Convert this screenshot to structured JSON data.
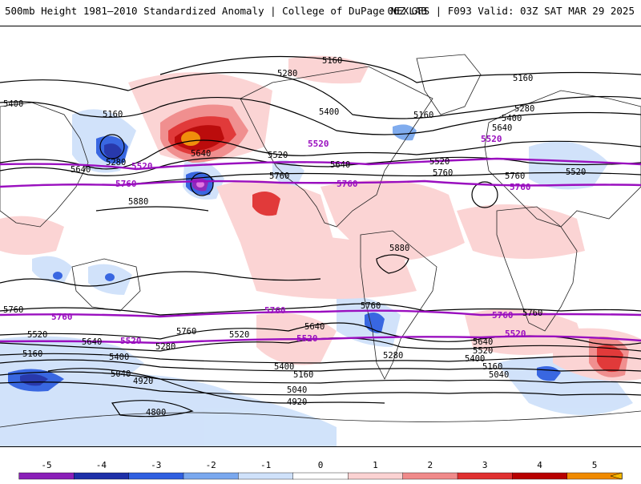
{
  "header": {
    "title": "500mb Height 1981–2010 Standardized Anomaly | College of DuPage NEXLAB",
    "run_info": "06Z GFS | F093 Valid: 03Z SAT MAR 29 2025"
  },
  "colors": {
    "contour": "#000000",
    "highlight_contour": "#9a0fbf",
    "coast": "#222222"
  },
  "contour_labels": [
    {
      "text": "5160",
      "group": "black"
    },
    {
      "text": "5280",
      "group": "black"
    },
    {
      "text": "5400",
      "group": "black"
    },
    {
      "text": "5520",
      "group": "black"
    },
    {
      "text": "5640",
      "group": "black"
    },
    {
      "text": "5760",
      "group": "black"
    },
    {
      "text": "5880",
      "group": "black"
    },
    {
      "text": "5040",
      "group": "black"
    },
    {
      "text": "4920",
      "group": "black"
    },
    {
      "text": "4800",
      "group": "black"
    },
    {
      "text": "5520",
      "group": "purple"
    },
    {
      "text": "5760",
      "group": "purple"
    }
  ],
  "colorbar": {
    "ticks": [
      "-5",
      "-4",
      "-3",
      "-2",
      "-1",
      "0",
      "1",
      "2",
      "3",
      "4",
      "5"
    ],
    "segments": [
      {
        "color": "#e070e0"
      },
      {
        "color": "#8a1fb8"
      },
      {
        "color": "#1d2fa8"
      },
      {
        "color": "#2f5fe0"
      },
      {
        "color": "#7aa8ee"
      },
      {
        "color": "#cfe1fa"
      },
      {
        "color": "#ffffff"
      },
      {
        "color": "#fbd2d2"
      },
      {
        "color": "#f08a8a"
      },
      {
        "color": "#e03030"
      },
      {
        "color": "#b80000"
      },
      {
        "color": "#f08a00"
      },
      {
        "color": "#f8b800"
      }
    ]
  }
}
